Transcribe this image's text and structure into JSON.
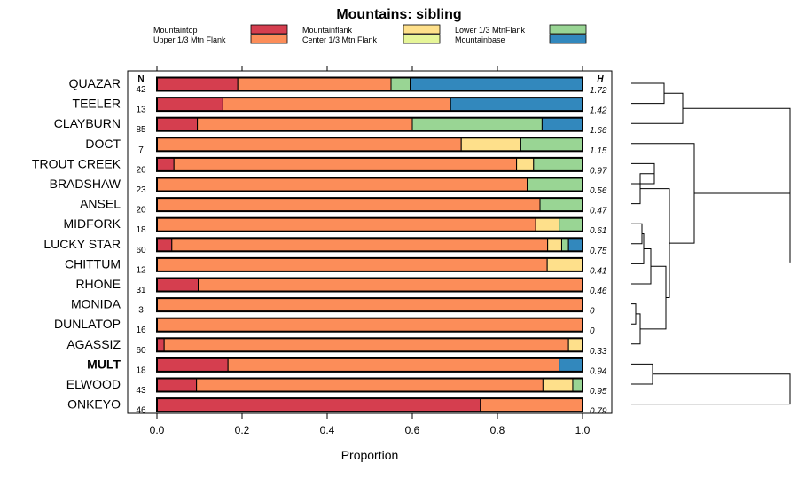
{
  "chart_data": {
    "type": "bar",
    "stacked": true,
    "orientation": "horizontal",
    "title": "Mountains: sibling",
    "xlabel": "Proportion",
    "xlim": [
      0,
      1
    ],
    "x_ticks": [
      "0.0",
      "0.2",
      "0.4",
      "0.6",
      "0.8",
      "1.0"
    ],
    "n_header": "N",
    "h_header": "H",
    "legend_position": "top",
    "categories_legend": [
      {
        "name": "Mountaintop",
        "color": "#D53E4F"
      },
      {
        "name": "Upper 1/3 Mtn Flank",
        "color": "#FC8D59"
      },
      {
        "name": "Mountainflank",
        "color": "#FEE08B"
      },
      {
        "name": "Center 1/3 Mtn Flank",
        "color": "#E6F598"
      },
      {
        "name": "Lower 1/3 MtnFlank",
        "color": "#99D594"
      },
      {
        "name": "Mountainbase",
        "color": "#3288BD"
      }
    ],
    "rows": [
      {
        "label": "QUAZAR",
        "bold": false,
        "n": "42",
        "h": "1.72",
        "values": [
          0.19,
          0.36,
          0,
          0,
          0.045,
          0.405
        ]
      },
      {
        "label": "TEELER",
        "bold": false,
        "n": "13",
        "h": "1.42",
        "values": [
          0.155,
          0.535,
          0,
          0,
          0,
          0.31
        ]
      },
      {
        "label": "CLAYBURN",
        "bold": false,
        "n": "85",
        "h": "1.66",
        "values": [
          0.095,
          0.505,
          0,
          0,
          0.305,
          0.095
        ]
      },
      {
        "label": "DOCT",
        "bold": false,
        "n": "7",
        "h": "1.15",
        "values": [
          0,
          0.715,
          0.14,
          0,
          0.145,
          0
        ]
      },
      {
        "label": "TROUT CREEK",
        "bold": false,
        "n": "26",
        "h": "0.97",
        "values": [
          0.04,
          0.805,
          0.04,
          0,
          0.115,
          0
        ]
      },
      {
        "label": "BRADSHAW",
        "bold": false,
        "n": "23",
        "h": "0.56",
        "values": [
          0,
          0.87,
          0,
          0,
          0.13,
          0
        ]
      },
      {
        "label": "ANSEL",
        "bold": false,
        "n": "20",
        "h": "0.47",
        "values": [
          0,
          0.9,
          0,
          0,
          0.1,
          0
        ]
      },
      {
        "label": "MIDFORK",
        "bold": false,
        "n": "18",
        "h": "0.61",
        "values": [
          0,
          0.89,
          0.055,
          0,
          0.055,
          0
        ]
      },
      {
        "label": "LUCKY STAR",
        "bold": false,
        "n": "60",
        "h": "0.75",
        "values": [
          0.035,
          0.883,
          0.033,
          0,
          0.016,
          0.033
        ]
      },
      {
        "label": "CHITTUM",
        "bold": false,
        "n": "12",
        "h": "0.41",
        "values": [
          0,
          0.917,
          0.083,
          0,
          0,
          0
        ]
      },
      {
        "label": "RHONE",
        "bold": false,
        "n": "31",
        "h": "0.46",
        "values": [
          0.097,
          0.903,
          0,
          0,
          0,
          0
        ]
      },
      {
        "label": "MONIDA",
        "bold": false,
        "n": "3",
        "h": "0",
        "values": [
          0,
          1,
          0,
          0,
          0,
          0
        ]
      },
      {
        "label": "DUNLATOP",
        "bold": false,
        "n": "16",
        "h": "0",
        "values": [
          0,
          1,
          0,
          0,
          0,
          0
        ]
      },
      {
        "label": "AGASSIZ",
        "bold": false,
        "n": "60",
        "h": "0.33",
        "values": [
          0.017,
          0.95,
          0.033,
          0,
          0,
          0
        ]
      },
      {
        "label": "MULT",
        "bold": true,
        "n": "18",
        "h": "0.94",
        "values": [
          0.167,
          0.778,
          0,
          0,
          0,
          0.055
        ]
      },
      {
        "label": "ELWOOD",
        "bold": false,
        "n": "43",
        "h": "0.95",
        "values": [
          0.093,
          0.814,
          0.07,
          0,
          0.023,
          0
        ]
      },
      {
        "label": "ONKEYO",
        "bold": false,
        "n": "46",
        "h": "0.79",
        "values": [
          0.76,
          0.24,
          0,
          0,
          0,
          0
        ]
      }
    ],
    "dendrogram": "hierarchical clustering tree of the 17 rows (right side)"
  }
}
